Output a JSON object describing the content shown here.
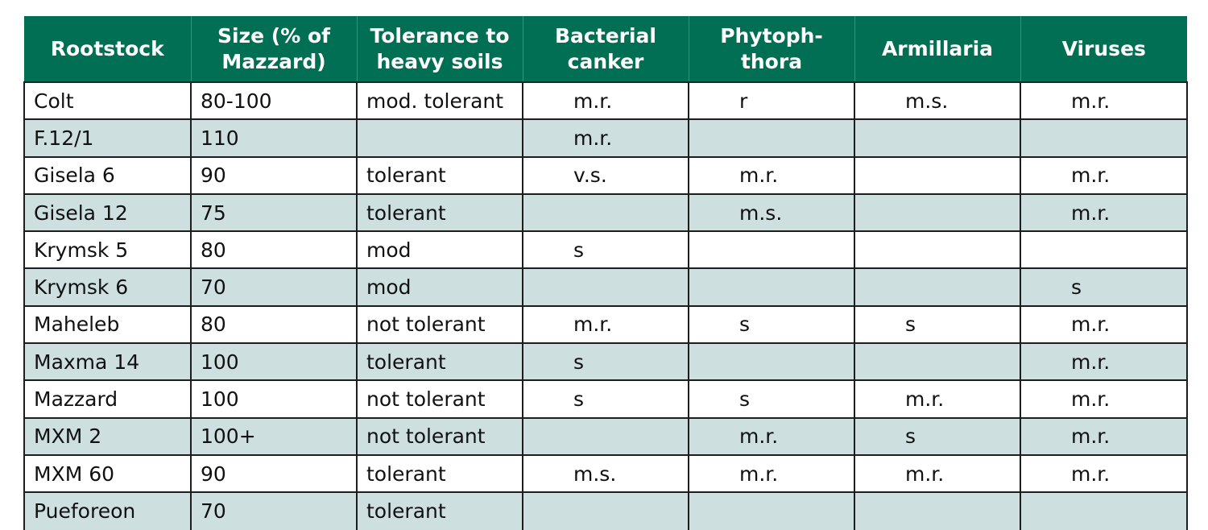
{
  "table": {
    "headers": [
      [
        "Rootstock"
      ],
      [
        "Size (% of",
        "Mazzard)"
      ],
      [
        "Tolerance to",
        "heavy soils"
      ],
      [
        "Bacterial",
        "canker"
      ],
      [
        "Phytoph-",
        "thora"
      ],
      [
        "Armillaria"
      ],
      [
        "Viruses"
      ]
    ],
    "rows": [
      [
        "Colt",
        "80-100",
        "mod. tolerant",
        "m.r.",
        "r",
        "m.s.",
        "m.r."
      ],
      [
        "F.12/1",
        "110",
        "",
        "m.r.",
        "",
        "",
        ""
      ],
      [
        "Gisela 6",
        "90",
        "tolerant",
        "v.s.",
        "m.r.",
        "",
        "m.r."
      ],
      [
        "Gisela 12",
        "75",
        "tolerant",
        "",
        "m.s.",
        "",
        "m.r."
      ],
      [
        "Krymsk 5",
        "80",
        "mod",
        "s",
        "",
        "",
        ""
      ],
      [
        "Krymsk 6",
        "70",
        "mod",
        "",
        "",
        "",
        "s"
      ],
      [
        "Maheleb",
        "80",
        "not tolerant",
        "m.r.",
        "s",
        "s",
        "m.r."
      ],
      [
        "Maxma 14",
        "100",
        "tolerant",
        "s",
        "",
        "",
        "m.r."
      ],
      [
        "Mazzard",
        "100",
        "not tolerant",
        "s",
        "s",
        "m.r.",
        "m.r."
      ],
      [
        "MXM 2",
        "100+",
        "not tolerant",
        "",
        "m.r.",
        "s",
        "m.r."
      ],
      [
        "MXM 60",
        "90",
        "tolerant",
        "m.s.",
        "m.r.",
        "m.r.",
        "m.r."
      ],
      [
        "Pueforeon",
        "70",
        "tolerant",
        "",
        "",
        "",
        ""
      ]
    ]
  }
}
